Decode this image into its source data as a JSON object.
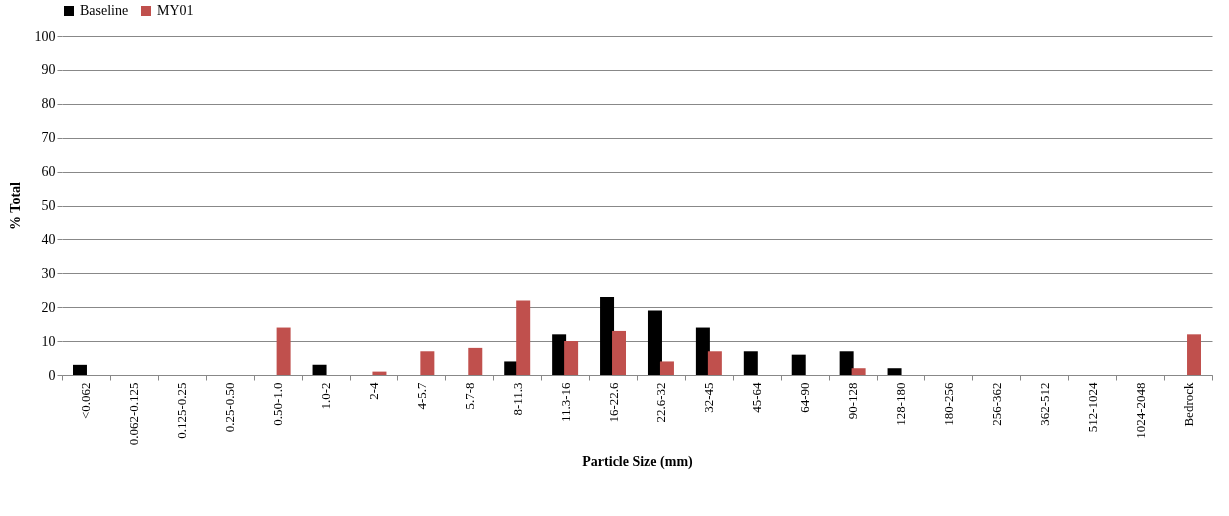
{
  "chart_data": {
    "type": "bar",
    "xlabel": "Particle Size (mm)",
    "ylabel": "% Total",
    "categories": [
      "<0.062",
      "0.062-0.125",
      "0.125-0.25",
      "0.25-0.50",
      "0.50-1.0",
      "1.0-2",
      "2-4",
      "4-5.7",
      "5.7-8",
      "8-11.3",
      "11.3-16",
      "16-22.6",
      "22.6-32",
      "32-45",
      "45-64",
      "64-90",
      "90-128",
      "128-180",
      "180-256",
      "256-362",
      "362-512",
      "512-1024",
      "1024-2048",
      "Bedrock"
    ],
    "series": [
      {
        "name": "Baseline",
        "color": "#000000",
        "values": [
          3,
          0,
          0,
          0,
          0,
          3,
          0,
          0,
          0,
          4,
          12,
          23,
          19,
          14,
          7,
          6,
          7,
          2,
          0,
          0,
          0,
          0,
          0,
          0
        ]
      },
      {
        "name": "MY01",
        "color": "#c0504d",
        "values": [
          0,
          0,
          0,
          0,
          14,
          0,
          1,
          7,
          8,
          22,
          10,
          13,
          4,
          7,
          0,
          0,
          2,
          0,
          0,
          0,
          0,
          0,
          0,
          12
        ]
      }
    ],
    "ylim": [
      0,
      100
    ],
    "yticks": [
      0,
      10,
      20,
      30,
      40,
      50,
      60,
      70,
      80,
      90,
      100
    ],
    "grid": "y",
    "legend": "top"
  }
}
